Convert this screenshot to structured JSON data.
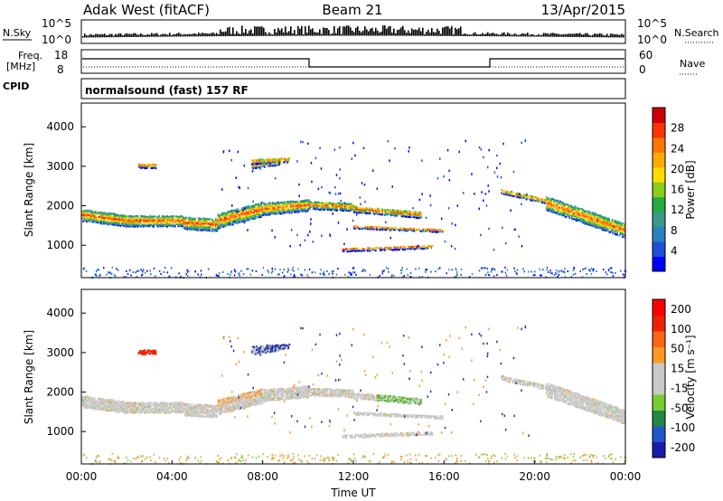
{
  "header": {
    "station": "Adak West (fitACF)",
    "beam": "Beam 21",
    "date": "13/Apr/2015"
  },
  "top_panels": {
    "nsky_label": "N.Sky",
    "nsearch_label": "N.Search",
    "noise_ticks": [
      "10^5",
      "10^0"
    ],
    "freq_label_1": "Freq.",
    "freq_label_2": "[MHz]",
    "freq_ticks": [
      "18",
      "8"
    ],
    "nave_label": "Nave",
    "nave_ticks": [
      "60",
      "0"
    ],
    "cpid_label": "CPID",
    "cpid_text": "normalsound (fast) 157 RF"
  },
  "chart_data": [
    {
      "type": "heatmap",
      "name": "power",
      "ylabel": "Slant Range [km]",
      "ylim": [
        180,
        4600
      ],
      "yticks": [
        "1000",
        "2000",
        "3000",
        "4000"
      ],
      "colorbar_label": "Power [dB]",
      "colorbar_ticks": [
        "4",
        "8",
        "12",
        "16",
        "20",
        "24",
        "28"
      ],
      "colorbar_colors": [
        "#0000ff",
        "#1f4fd8",
        "#2a7fbf",
        "#3a9a8a",
        "#22aa44",
        "#8acc1a",
        "#ffdd00",
        "#ffaa00",
        "#ff7700",
        "#ff3300",
        "#cc0000"
      ]
    },
    {
      "type": "heatmap",
      "name": "velocity",
      "ylabel": "Slant Range [km]",
      "ylim": [
        180,
        4600
      ],
      "yticks": [
        "1000",
        "2000",
        "3000",
        "4000"
      ],
      "colorbar_label": "Velocity [m s⁻¹]",
      "colorbar_ticks": [
        "200",
        "100",
        "50",
        "15",
        "-15",
        "-50",
        "-100",
        "-200"
      ],
      "colorbar_colors": [
        "#1a1aaa",
        "#2255cc",
        "#228844",
        "#77cc33",
        "#c8c8c8",
        "#c8c8c8",
        "#ff9922",
        "#ff6611",
        "#ee2200",
        "#ff0000"
      ]
    }
  ],
  "xaxis": {
    "label": "Time UT",
    "ticks": [
      "00:00",
      "04:00",
      "08:00",
      "12:00",
      "16:00",
      "20:00",
      "00:00"
    ]
  }
}
